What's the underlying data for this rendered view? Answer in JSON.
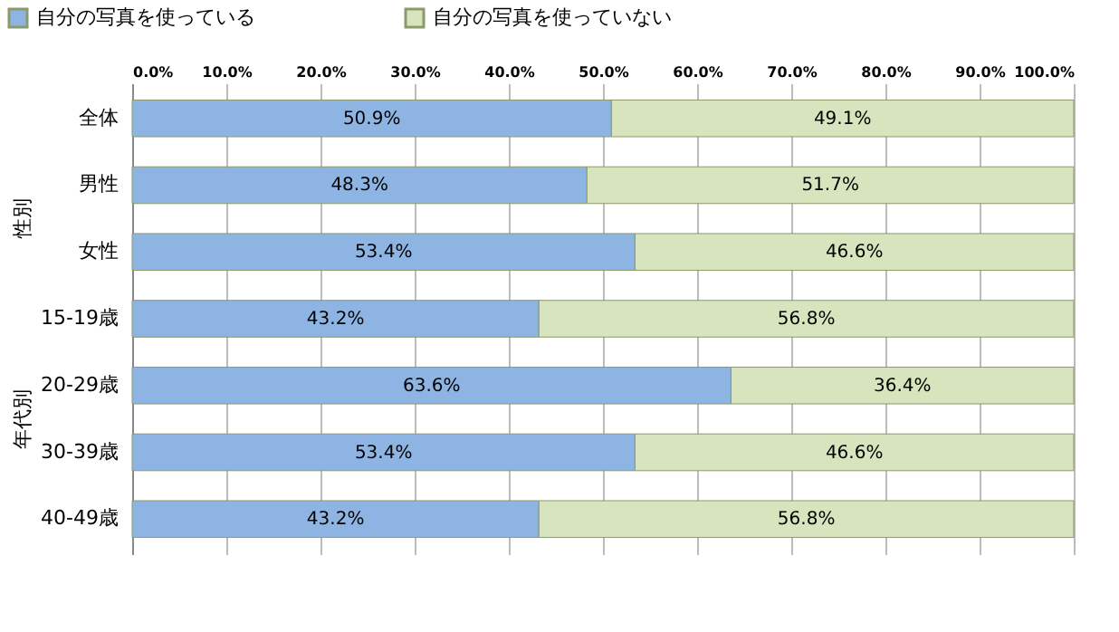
{
  "chart_data": {
    "type": "bar",
    "orientation": "horizontal",
    "stacked": true,
    "categories": [
      "全体",
      "男性",
      "女性",
      "15-19歳",
      "20-29歳",
      "30-39歳",
      "40-49歳"
    ],
    "series": [
      {
        "name": "自分の写真を使っている",
        "color": "#8db4e2",
        "values": [
          50.9,
          48.3,
          53.4,
          43.2,
          63.6,
          53.4,
          43.2
        ],
        "value_labels": [
          "50.9%",
          "48.3%",
          "53.4%",
          "43.2%",
          "63.6%",
          "53.4%",
          "43.2%"
        ]
      },
      {
        "name": "自分の写真を使っていない",
        "color": "#d7e4bd",
        "values": [
          49.1,
          51.7,
          46.6,
          56.8,
          36.4,
          46.6,
          56.8
        ],
        "value_labels": [
          "49.1%",
          "51.7%",
          "46.6%",
          "56.8%",
          "36.4%",
          "46.6%",
          "56.8%"
        ]
      }
    ],
    "xlim": [
      0,
      100
    ],
    "xticks": [
      {
        "value": 0,
        "label": "0.0%"
      },
      {
        "value": 10,
        "label": "10.0%"
      },
      {
        "value": 20,
        "label": "20.0%"
      },
      {
        "value": 30,
        "label": "30.0%"
      },
      {
        "value": 40,
        "label": "40.0%"
      },
      {
        "value": 50,
        "label": "50.0%"
      },
      {
        "value": 60,
        "label": "60.0%"
      },
      {
        "value": 70,
        "label": "70.0%"
      },
      {
        "value": 80,
        "label": "80.0%"
      },
      {
        "value": 90,
        "label": "90.0%"
      },
      {
        "value": 100,
        "label": "100.0%"
      }
    ],
    "grid": "x",
    "legend": "top",
    "annotations": [
      "性別",
      "年代別"
    ]
  }
}
